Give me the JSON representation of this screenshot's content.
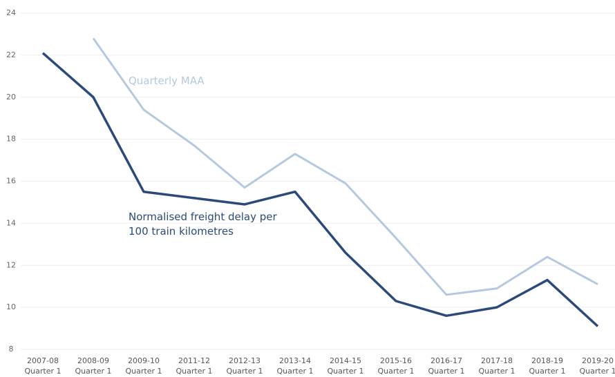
{
  "chart_data": {
    "type": "line",
    "categories": [
      "2007-08 Quarter 1",
      "2008-09 Quarter 1",
      "2009-10 Quarter 1",
      "2011-12 Quarter 1",
      "2012-13 Quarter 1",
      "2013-14 Quarter 1",
      "2014-15 Quarter 1",
      "2015-16 Quarter 1",
      "2016-17 Quarter 1",
      "2017-18 Quarter 1",
      "2018-19 Quarter 1",
      "2019-20 Quarter 1"
    ],
    "series": [
      {
        "name": "Quarterly MAA",
        "color": "#b4c8e0",
        "values": [
          null,
          22.8,
          19.4,
          17.7,
          15.7,
          17.3,
          15.9,
          13.3,
          10.6,
          10.9,
          12.4,
          11.1
        ]
      },
      {
        "name": "Normalised freight delay per 100 train kilometres",
        "color": "#2b4a79",
        "values": [
          22.1,
          20.0,
          15.5,
          15.2,
          14.9,
          15.5,
          12.6,
          10.3,
          9.6,
          10.0,
          11.3,
          9.1
        ]
      }
    ],
    "ylim": [
      8,
      24
    ],
    "yticks": [
      8,
      10,
      12,
      14,
      16,
      18,
      20,
      22,
      24
    ],
    "grid": true
  }
}
